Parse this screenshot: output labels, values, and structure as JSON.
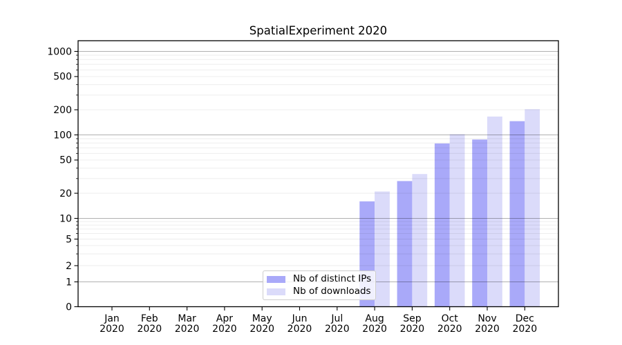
{
  "title": "SpatialExperiment 2020",
  "chart_data": {
    "type": "bar",
    "title": "SpatialExperiment 2020",
    "categories": [
      "Jan",
      "Feb",
      "Mar",
      "Apr",
      "May",
      "Jun",
      "Jul",
      "Aug",
      "Sep",
      "Oct",
      "Nov",
      "Dec"
    ],
    "category_year": "2020",
    "series": [
      {
        "name": "Nb of distinct IPs",
        "color": "#a9a9f9",
        "values": [
          0,
          0,
          0,
          0,
          0,
          0,
          0,
          16,
          28,
          79,
          88,
          146
        ]
      },
      {
        "name": "Nb of downloads",
        "color": "#dbdbfa",
        "values": [
          0,
          0,
          0,
          0,
          0,
          0,
          0,
          21,
          34,
          102,
          166,
          203
        ]
      }
    ],
    "yscale": "symlog",
    "ytick_labels": [
      "0",
      "1",
      "2",
      "5",
      "10",
      "20",
      "50",
      "100",
      "200",
      "500",
      "1000"
    ],
    "ylim": [
      0,
      1300
    ],
    "grid": "on",
    "legend_position": "lower center",
    "colors": {
      "background": "#ffffff",
      "axis": "#000000",
      "text": "#000000",
      "major_grid": "#b0b0b0",
      "minor_grid": "#ebebeb",
      "legend_border": "#cccccc"
    }
  }
}
